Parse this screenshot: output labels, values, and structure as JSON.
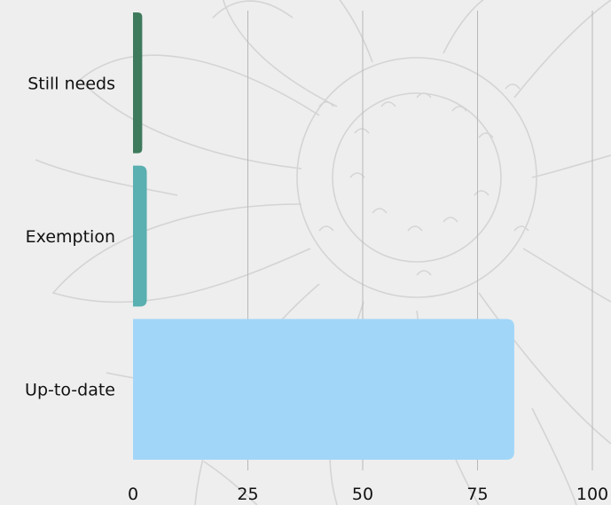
{
  "chart_data": {
    "type": "bar",
    "orientation": "horizontal",
    "title": "",
    "xlabel": "",
    "ylabel": "",
    "categories": [
      "Still needs",
      "Exemption",
      "Up-to-date"
    ],
    "values": [
      2,
      3,
      83
    ],
    "colors": [
      "#3e7a5c",
      "#5aafb0",
      "#a2d6f9"
    ],
    "xlim": [
      0,
      100
    ],
    "xticks": [
      "0",
      "25",
      "50",
      "75",
      "100"
    ],
    "grid": "vertical",
    "legend": "none"
  },
  "background": {
    "color": "#eeeeee",
    "motif": "daisy line drawing"
  }
}
